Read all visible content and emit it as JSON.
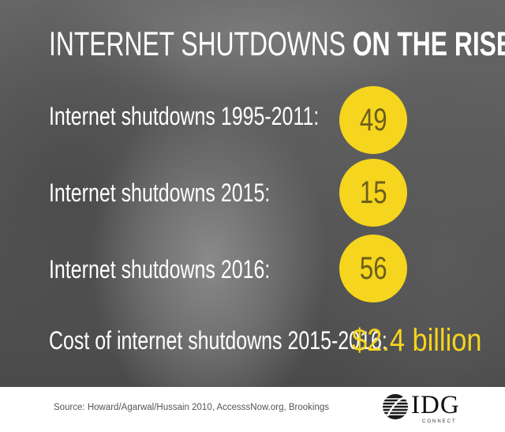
{
  "title": {
    "light": "INTERNET SHUTDOWNS ",
    "bold": "ON THE RISE"
  },
  "stats": [
    {
      "label": "Internet shutdowns 1995-2011:",
      "value": "49"
    },
    {
      "label": "Internet shutdowns 2015:",
      "value": "15"
    },
    {
      "label": "Internet shutdowns 2016:",
      "value": "56"
    }
  ],
  "cost": {
    "label": "Cost of internet shutdowns 2015-2016:",
    "value": "$2.4 billion"
  },
  "source": "Source: Howard/Agarwal/Hussain 2010, AccesssNow.org, Brookings",
  "logo": {
    "name": "IDG",
    "subtitle": "CONNECT",
    "icon": "idg-globe-icon"
  },
  "colors": {
    "accent": "#f5d51d",
    "text": "#ffffff"
  }
}
